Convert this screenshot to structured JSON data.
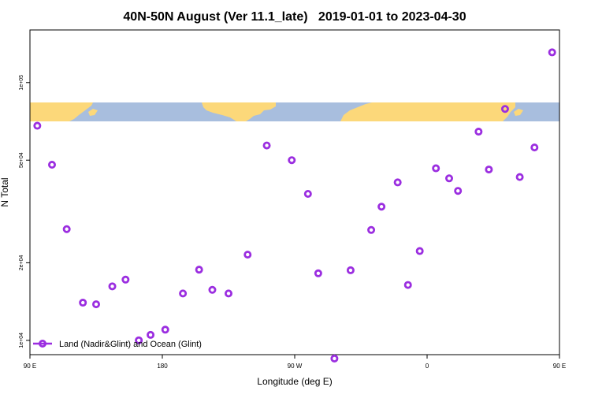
{
  "chart_data": {
    "type": "scatter",
    "title": "40N-50N August (Ver 11.1_late)   2019-01-01 to 2023-04-30",
    "xlabel": "Longitude (deg E)",
    "ylabel": "N Total",
    "xlim": [
      90,
      450
    ],
    "ylim": [
      8800,
      160000
    ],
    "yscale": "log",
    "x_ticks": [
      {
        "value": 90,
        "label": "90 E"
      },
      {
        "value": 180,
        "label": "180"
      },
      {
        "value": 270,
        "label": "90 W"
      },
      {
        "value": 360,
        "label": "0"
      },
      {
        "value": 450,
        "label": "90 E"
      }
    ],
    "y_ticks": [
      {
        "value": 10000,
        "label": "1e+04"
      },
      {
        "value": 20000,
        "label": "2e+04"
      },
      {
        "value": 50000,
        "label": "5e+04"
      },
      {
        "value": 100000,
        "label": "1e+05"
      }
    ],
    "grid": false,
    "legend_position": "bottom-left",
    "map_strip": {
      "lat_range": "40N-50N",
      "ocean_color": "#a8bede",
      "land_color": "#fcd87a"
    },
    "series": [
      {
        "name": "Land (Nadir&Glint) and Ocean (Glint)",
        "color": "#9b2ee0",
        "x": [
          95,
          105,
          115,
          126,
          135,
          146,
          155,
          164,
          172,
          182,
          194,
          205,
          214,
          225,
          238,
          251,
          268,
          279,
          286,
          297,
          308,
          322,
          329,
          340,
          347,
          355,
          366,
          375,
          381,
          395,
          402,
          413,
          423,
          433,
          445
        ],
        "y": [
          68000,
          48000,
          27000,
          14000,
          13800,
          16200,
          17200,
          10000,
          10500,
          11000,
          15200,
          18800,
          15700,
          15200,
          21500,
          57000,
          50000,
          37000,
          18200,
          8500,
          18700,
          26800,
          33000,
          41000,
          16400,
          22200,
          46500,
          42500,
          38000,
          64500,
          46000,
          79000,
          43000,
          56000,
          131000
        ]
      }
    ]
  }
}
